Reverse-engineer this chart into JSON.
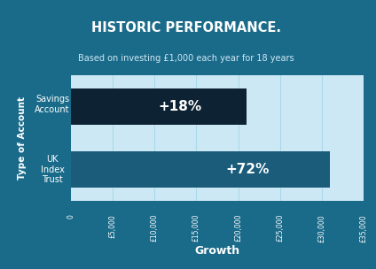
{
  "title": "HISTORIC PERFORMANCE.",
  "subtitle": "Based on investing £1,000 each year for 18 years",
  "categories": [
    "Savings\nAccount",
    "UK\nIndex\nTrust"
  ],
  "values": [
    21000,
    31000
  ],
  "labels": [
    "+18%",
    "+72%"
  ],
  "bar_colors": [
    "#0d2233",
    "#1a5c7a"
  ],
  "xlabel": "Growth",
  "ylabel": "Type of Account",
  "xlim": [
    0,
    35000
  ],
  "xticks": [
    0,
    5000,
    10000,
    15000,
    20000,
    25000,
    30000,
    35000
  ],
  "xtick_labels": [
    "0",
    "£5,000",
    "£10,000",
    "£15,000",
    "£20,000",
    "£25,000",
    "£30,000",
    "£35,000"
  ],
  "header_bg": "#1a6b8a",
  "plot_bg": "#cce8f4",
  "ylabel_bg": "#2e9cc8",
  "grid_color": "#aad8ec",
  "label_color": "#ffffff",
  "title_color": "#ffffff",
  "subtitle_color": "#d0e8f5",
  "tick_color": "#ffffff",
  "xlabel_color": "#ffffff"
}
